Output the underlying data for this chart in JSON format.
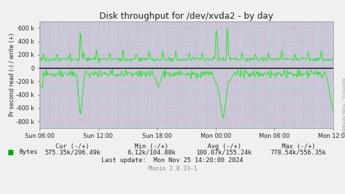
{
  "title": "Disk throughput for /dev/xvda2 - by day",
  "ylabel": "Pr second read (-) / write (+)",
  "right_label": "RRDTOOL / TOBI OETIKER",
  "background_color": "#f0f0f0",
  "plot_bg_color": "#c8c8d8",
  "grid_color_v": "#ff8888",
  "grid_color_h": "#aaaacc",
  "line_color": "#00ee00",
  "zero_line_color": "#000000",
  "ylim": [
    -900000,
    700000
  ],
  "yticks": [
    -800000,
    -600000,
    -400000,
    -200000,
    0,
    200000,
    400000,
    600000
  ],
  "ytick_labels": [
    "-800 k",
    "-600 k",
    "-400 k",
    "-200 k",
    "0",
    "200 k",
    "400 k",
    "600 k"
  ],
  "xtick_labels": [
    "Sun 06:00",
    "Sun 12:00",
    "Sun 18:00",
    "Mon 00:00",
    "Mon 06:00",
    "Mon 12:00"
  ],
  "legend_label": "Bytes",
  "legend_color": "#00aa00",
  "cur": "575.35k/206.49k",
  "min_val": "6.12k/104.88k",
  "avg_val": "100.07k/155.24k",
  "max_val": "778.54k/556.35k",
  "last_update": "Last update:  Mon Nov 25 14:20:00 2024",
  "munin_version": "Munin 2.0.33-1",
  "figsize": [
    4.97,
    2.8
  ],
  "dpi": 100
}
